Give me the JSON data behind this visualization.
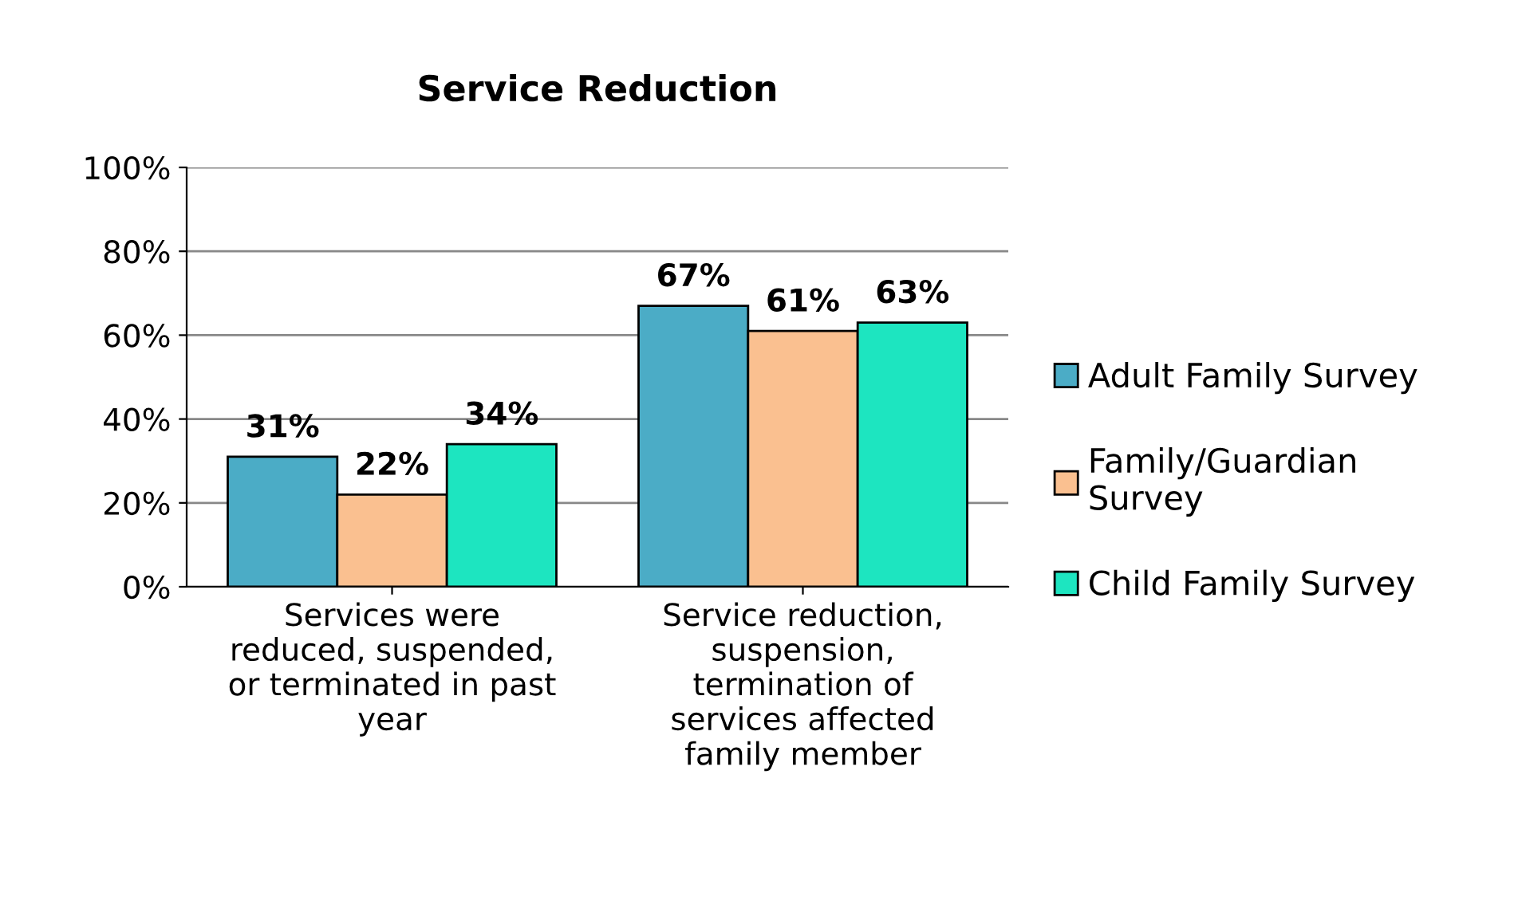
{
  "chart_data": {
    "type": "bar",
    "title": "Service Reduction",
    "categories": [
      "Services were\nreduced, suspended,\nor terminated in past\nyear",
      "Service reduction,\nsuspension,\ntermination of\nservices affected\nfamily member"
    ],
    "series": [
      {
        "name": "Adult Family Survey",
        "color": "#4bacc6",
        "values": [
          31,
          67
        ],
        "value_labels": [
          "31%",
          "67%"
        ]
      },
      {
        "name": "Family/Guardian\nSurvey",
        "color": "#fac090",
        "values": [
          22,
          61
        ],
        "value_labels": [
          "22%",
          "61%"
        ]
      },
      {
        "name": "Child Family Survey",
        "color": "#1de5c0",
        "values": [
          34,
          63
        ],
        "value_labels": [
          "34%",
          "63%"
        ]
      }
    ],
    "ylim": [
      0,
      100
    ],
    "yticks": [
      {
        "value": 0,
        "label": "0%"
      },
      {
        "value": 20,
        "label": "20%"
      },
      {
        "value": 40,
        "label": "40%"
      },
      {
        "value": 60,
        "label": "60%"
      },
      {
        "value": 80,
        "label": "80%"
      },
      {
        "value": 100,
        "label": "100%"
      }
    ],
    "grid": "y",
    "legend": "right"
  }
}
